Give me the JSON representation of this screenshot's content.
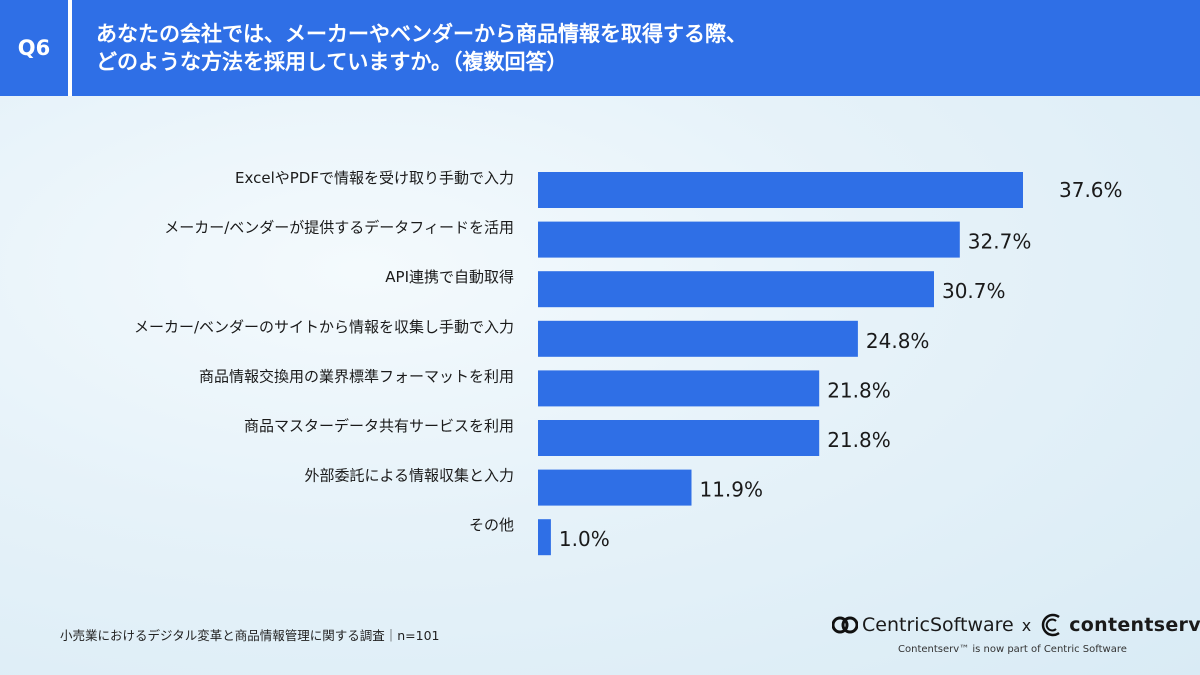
{
  "header": {
    "badge": "Q6",
    "title_line1": "あなたの会社では、メーカーやベンダーから商品情報を取得する際、",
    "title_line2": "どのような方法を採用していますか。（複数回答）"
  },
  "chart_data": {
    "type": "bar",
    "orientation": "horizontal",
    "categories": [
      "ExcelやPDFで情報を受け取り手動で入力",
      "メーカー/ベンダーが提供するデータフィードを活用",
      "API連携で自動取得",
      "メーカー/ベンダーのサイトから情報を収集し手動で入力",
      "商品情報交換用の業界標準フォーマットを利用",
      "商品マスターデータ共有サービスを利用",
      "外部委託による情報収集と入力",
      "その他"
    ],
    "values": [
      37.6,
      32.7,
      30.7,
      24.8,
      21.8,
      21.8,
      11.9,
      1.0
    ],
    "value_labels": [
      "37.6%",
      "32.7%",
      "30.7%",
      "24.8%",
      "21.8%",
      "21.8%",
      "11.9%",
      "1.0%"
    ],
    "unit": "%",
    "xlim": [
      0,
      37.6
    ],
    "bar_color": "#2f6fe6",
    "title": "",
    "xlabel": "",
    "ylabel": ""
  },
  "footer": {
    "note": "小売業におけるデジタル変革と商品情報管理に関する調査｜n=101",
    "brand_centric": "CentricSoftware",
    "brand_times": "x",
    "brand_contentserv": "contentserv",
    "brand_sub": "Contentserv™ is now part of Centric Software"
  },
  "colors": {
    "header": "#2f6fe6",
    "bar": "#2f6fe6"
  }
}
